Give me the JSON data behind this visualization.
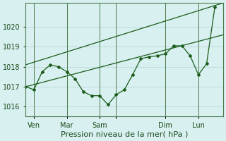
{
  "title": "",
  "xlabel": "Pression niveau de la mer( hPa )",
  "ylabel": "",
  "bg_color": "#d8f0f0",
  "grid_color": "#b8d8d8",
  "line_color": "#1a5c1a",
  "ylim": [
    1015.5,
    1021.2
  ],
  "xlim": [
    0,
    24
  ],
  "x_ticks": [
    1,
    5,
    9,
    11,
    17,
    21
  ],
  "x_labels": [
    "Ven",
    "Mar",
    "Sam",
    "",
    "Dim",
    "Lun"
  ],
  "pressure_data_x": [
    0,
    1,
    2,
    3,
    4,
    5,
    6,
    7,
    8,
    9,
    10,
    11,
    12,
    13,
    14,
    15,
    16,
    17,
    18,
    19,
    20,
    21,
    22,
    23
  ],
  "pressure_data_y": [
    1017.0,
    1016.85,
    1017.75,
    1018.1,
    1018.0,
    1017.75,
    1017.4,
    1016.75,
    1016.55,
    1016.55,
    1016.1,
    1016.6,
    1016.85,
    1017.6,
    1018.4,
    1018.5,
    1018.55,
    1018.65,
    1019.05,
    1019.05,
    1018.55,
    1017.6,
    1018.15,
    1021.0
  ],
  "upper_line_x": [
    0,
    24
  ],
  "upper_line_y": [
    1018.1,
    1021.2
  ],
  "lower_line_x": [
    0,
    24
  ],
  "lower_line_y": [
    1017.0,
    1019.6
  ],
  "y_ticks": [
    1016,
    1017,
    1018,
    1019,
    1020
  ],
  "tick_label_size": 7,
  "xlabel_size": 8
}
